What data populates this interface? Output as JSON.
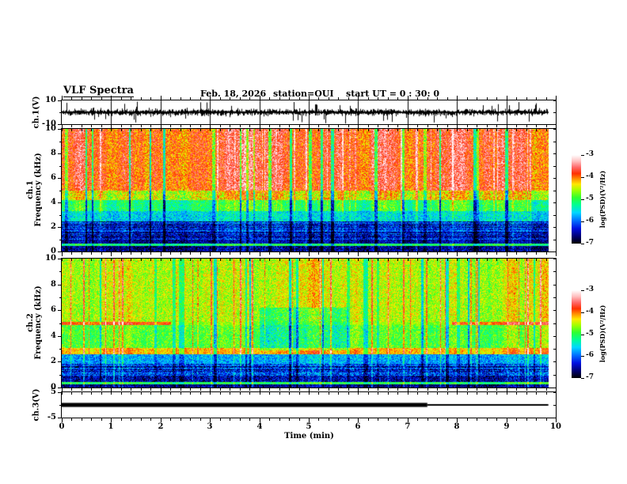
{
  "title": "VLF Spectra",
  "header": {
    "date": "Feb. 18, 2026",
    "station": "station=OUI",
    "start_ut": "start UT =  0 : 30: 0"
  },
  "x_axis": {
    "label": "Time (min)",
    "range": [
      0,
      10
    ],
    "major_ticks": [
      0,
      1,
      2,
      3,
      4,
      5,
      6,
      7,
      8,
      9,
      10
    ],
    "minor_step": 0.2,
    "data_end_min": 9.85
  },
  "colorbar": {
    "label": "log(PSD)(V²/Hz)",
    "range": [
      -7,
      -3
    ],
    "ticks": [
      -3,
      -4,
      -5,
      -6,
      -7
    ],
    "stops": [
      [
        0.0,
        "#000000"
      ],
      [
        0.08,
        "#000070"
      ],
      [
        0.17,
        "#0010e0"
      ],
      [
        0.26,
        "#0070ff"
      ],
      [
        0.35,
        "#00d8ff"
      ],
      [
        0.44,
        "#00ff90"
      ],
      [
        0.52,
        "#30ff30"
      ],
      [
        0.6,
        "#a0ff00"
      ],
      [
        0.67,
        "#ffe800"
      ],
      [
        0.73,
        "#ff9000"
      ],
      [
        0.79,
        "#ff3000"
      ],
      [
        0.86,
        "#ff6868"
      ],
      [
        0.93,
        "#ffc0c0"
      ],
      [
        1.0,
        "#ffffff"
      ]
    ]
  },
  "chart_data": [
    {
      "type": "line",
      "name": "ch1 raw waveform",
      "ylabel": "ch.1(V)",
      "ylim": [
        -10,
        10
      ],
      "yticks": [
        10,
        -10
      ],
      "yticks_minor": [
        0
      ],
      "description": "dense broadband noise waveform with impulsive spikes, data ends near 9.85 min",
      "noise_amp_v": 2.0,
      "spike_amp_v": 9.5,
      "spike_prob": 0.07,
      "seed": 11
    },
    {
      "type": "heatmap",
      "name": "ch1 VLF spectrogram",
      "ylabel": "ch.1 Frequency (kHz)",
      "ylabel_lines": [
        "ch.1",
        "Frequency (kHz)"
      ],
      "ylim": [
        0,
        10
      ],
      "yticks": [
        0,
        2,
        4,
        6,
        8,
        10
      ],
      "yticks_minor": [
        1,
        3,
        5,
        7,
        9
      ],
      "zlim": [
        -7,
        -3
      ],
      "seed": 23,
      "bands": [
        {
          "f": [
            5.0,
            10.0
          ],
          "v": -3.75,
          "jitter": 0.45
        },
        {
          "f": [
            4.2,
            5.0
          ],
          "v": -4.35,
          "jitter": 0.5
        },
        {
          "f": [
            3.3,
            4.2
          ],
          "v": -5.0,
          "jitter": 0.4
        },
        {
          "f": [
            2.5,
            3.3
          ],
          "v": -5.5,
          "jitter": 0.45
        },
        {
          "f": [
            1.0,
            2.5
          ],
          "v": -6.15,
          "jitter": 0.5,
          "row_stripe": 0.45
        },
        {
          "f": [
            0.7,
            1.0
          ],
          "v": -6.5,
          "jitter": 0.4
        },
        {
          "f": [
            0.5,
            0.7
          ],
          "v": -5.1,
          "jitter": 0.35
        },
        {
          "f": [
            0.0,
            0.5
          ],
          "v": -6.6,
          "jitter": 0.45
        }
      ],
      "columns": {
        "walk": 0.25,
        "quiet_prob": 0.035,
        "quiet_amp": [
          0.7,
          1.6
        ],
        "hot_prob": 0.03,
        "hot_amp": [
          0.3,
          0.7
        ],
        "low_f": 3.3,
        "low_scale": 0.5
      }
    },
    {
      "type": "heatmap",
      "name": "ch2 VLF spectrogram",
      "ylabel": "ch.2 Frequency (kHz)",
      "ylabel_lines": [
        "ch.2",
        "Frequency (kHz)"
      ],
      "ylim": [
        0,
        10
      ],
      "yticks": [
        0,
        2,
        4,
        6,
        8,
        10
      ],
      "yticks_minor": [
        1,
        3,
        5,
        7,
        9
      ],
      "zlim": [
        -7,
        -3
      ],
      "seed": 57,
      "bands": [
        {
          "f": [
            5.15,
            10.0
          ],
          "v": -4.5,
          "jitter": 0.4
        },
        {
          "f": [
            4.85,
            5.15
          ],
          "v": -3.8,
          "jitter": 0.25,
          "t_ranges": [
            [
              0,
              2.2
            ],
            [
              7.9,
              9.85
            ]
          ],
          "v_else": -4.6
        },
        {
          "f": [
            3.1,
            4.85
          ],
          "v": -4.8,
          "jitter": 0.4
        },
        {
          "f": [
            2.6,
            3.1
          ],
          "v": -4.15,
          "jitter": 0.3
        },
        {
          "f": [
            1.9,
            2.6
          ],
          "v": -5.75,
          "jitter": 0.4
        },
        {
          "f": [
            0.9,
            1.9
          ],
          "v": -6.2,
          "jitter": 0.55,
          "row_stripe": 0.4
        },
        {
          "f": [
            0.45,
            0.9
          ],
          "v": -6.5,
          "jitter": 0.5
        },
        {
          "f": [
            0.25,
            0.45
          ],
          "v": -5.0,
          "jitter": 0.35
        },
        {
          "f": [
            0.0,
            0.25
          ],
          "v": -6.6,
          "jitter": 0.4
        }
      ],
      "columns": {
        "walk": 0.2,
        "quiet_prob": 0.04,
        "quiet_amp": [
          0.5,
          1.0
        ],
        "hot_prob": 0.05,
        "hot_amp": [
          0.5,
          1.0
        ],
        "low_f": 2.6,
        "low_scale": 0.6
      },
      "mid_patch": {
        "t": [
          4.0,
          5.8
        ],
        "f": [
          2.9,
          6.2
        ],
        "amp": 0.55
      }
    },
    {
      "type": "line",
      "name": "ch3 signal envelope",
      "ylabel": "ch.3(V)",
      "ylim": [
        -5,
        5
      ],
      "yticks": [
        5,
        -5
      ],
      "yticks_minor": [
        0
      ],
      "segments": [
        {
          "t": [
            0,
            7.4
          ],
          "amp_v": 0.8
        },
        {
          "t": [
            7.4,
            9.85
          ],
          "amp_v": 0.3
        }
      ]
    }
  ]
}
